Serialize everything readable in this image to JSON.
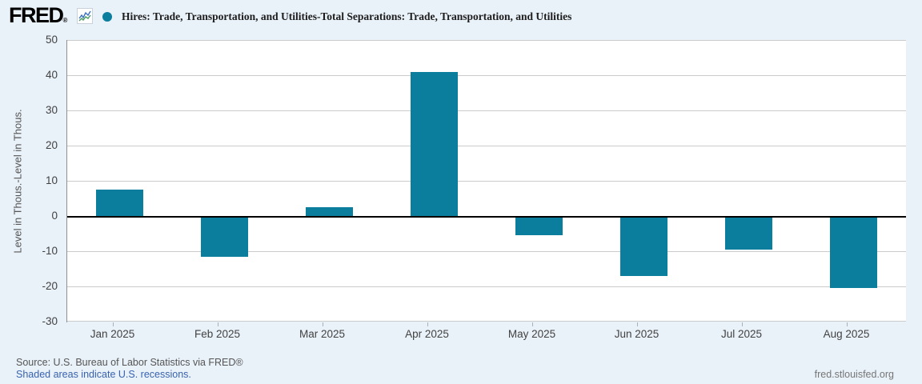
{
  "header": {
    "logo_text": "FRED",
    "logo_registered": "®",
    "sparkline_icon": "line-chart-icon",
    "legend_marker": "filled-circle",
    "series_title": "Hires: Trade, Transportation, and Utilities-Total Separations: Trade, Transportation, and Utilities"
  },
  "chart_data": {
    "type": "bar",
    "title": "Hires: Trade, Transportation, and Utilities-Total Separations: Trade, Transportation, and Utilities",
    "categories": [
      "Jan 2025",
      "Feb 2025",
      "Mar 2025",
      "Apr 2025",
      "May 2025",
      "Jun 2025",
      "Jul 2025",
      "Aug 2025"
    ],
    "values": [
      7.5,
      -11.5,
      2.5,
      41,
      -5.5,
      -17,
      -9.5,
      -20.5
    ],
    "xlabel": "",
    "ylabel": "Level in Thous.-Level in Thous.",
    "ylim": [
      -30,
      50
    ],
    "yticks": [
      50,
      40,
      30,
      20,
      10,
      0,
      -10,
      -20,
      -30
    ],
    "grid": true,
    "zero_line": true,
    "legend_position": "top",
    "bar_color": "#0c7e9d"
  },
  "colors": {
    "bar": "#0c7e9d",
    "link": "#3963ae"
  },
  "footer": {
    "source_text": "Source: U.S. Bureau of Labor Statistics via FRED®",
    "recession_note": "Shaded areas indicate U.S. recessions.",
    "site_link": "fred.stlouisfed.org"
  }
}
